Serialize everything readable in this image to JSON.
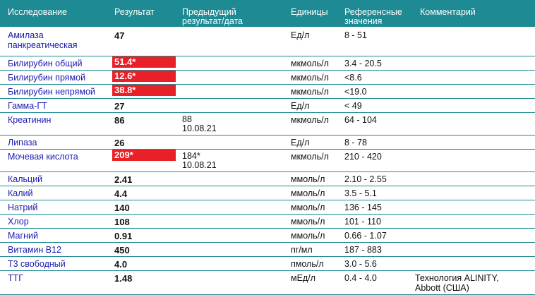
{
  "headers": {
    "test": "Исследование",
    "result": "Результат",
    "previous_line1": "Предыдущий",
    "previous_line2": "результат/дата",
    "units": "Единицы",
    "reference_line1": "Референсные",
    "reference_line2": "значения",
    "comment": "Комментарий"
  },
  "rows": [
    {
      "name_1": "Амилаза",
      "name_2": "панкреатическая",
      "result": "47",
      "flag": false,
      "prev_1": "",
      "prev_2": "",
      "unit": "Ед/л",
      "ref": "8 - 51",
      "comment_1": "",
      "comment_2": ""
    },
    {
      "name_1": "Билирубин общий",
      "name_2": "",
      "result": "51.4*",
      "flag": true,
      "prev_1": "",
      "prev_2": "",
      "unit": "мкмоль/л",
      "ref": "3.4 - 20.5",
      "comment_1": "",
      "comment_2": ""
    },
    {
      "name_1": "Билирубин прямой",
      "name_2": "",
      "result": "12.6*",
      "flag": true,
      "prev_1": "",
      "prev_2": "",
      "unit": "мкмоль/л",
      "ref": "<8.6",
      "comment_1": "",
      "comment_2": ""
    },
    {
      "name_1": "Билирубин непрямой",
      "name_2": "",
      "result": "38.8*",
      "flag": true,
      "prev_1": "",
      "prev_2": "",
      "unit": "мкмоль/л",
      "ref": "<19.0",
      "comment_1": "",
      "comment_2": ""
    },
    {
      "name_1": "Гамма-ГТ",
      "name_2": "",
      "result": "27",
      "flag": false,
      "prev_1": "",
      "prev_2": "",
      "unit": "Ед/л",
      "ref": "< 49",
      "comment_1": "",
      "comment_2": ""
    },
    {
      "name_1": "Креатинин",
      "name_2": "",
      "result": "86",
      "flag": false,
      "prev_1": "88",
      "prev_2": "10.08.21",
      "unit": "мкмоль/л",
      "ref": "64 - 104",
      "comment_1": "",
      "comment_2": ""
    },
    {
      "name_1": "Липаза",
      "name_2": "",
      "result": "26",
      "flag": false,
      "prev_1": "",
      "prev_2": "",
      "unit": "Ед/л",
      "ref": "8 - 78",
      "comment_1": "",
      "comment_2": ""
    },
    {
      "name_1": "Мочевая кислота",
      "name_2": "",
      "result": "209*",
      "flag": true,
      "prev_1": "184*",
      "prev_2": "10.08.21",
      "unit": "мкмоль/л",
      "ref": "210 - 420",
      "comment_1": "",
      "comment_2": ""
    },
    {
      "name_1": "Кальций",
      "name_2": "",
      "result": "2.41",
      "flag": false,
      "prev_1": "",
      "prev_2": "",
      "unit": "ммоль/л",
      "ref": "2.10 - 2.55",
      "comment_1": "",
      "comment_2": ""
    },
    {
      "name_1": "Калий",
      "name_2": "",
      "result": "4.4",
      "flag": false,
      "prev_1": "",
      "prev_2": "",
      "unit": "ммоль/л",
      "ref": "3.5 - 5.1",
      "comment_1": "",
      "comment_2": ""
    },
    {
      "name_1": "Натрий",
      "name_2": "",
      "result": "140",
      "flag": false,
      "prev_1": "",
      "prev_2": "",
      "unit": "ммоль/л",
      "ref": "136 - 145",
      "comment_1": "",
      "comment_2": ""
    },
    {
      "name_1": "Хлор",
      "name_2": "",
      "result": "108",
      "flag": false,
      "prev_1": "",
      "prev_2": "",
      "unit": "ммоль/л",
      "ref": "101 - 110",
      "comment_1": "",
      "comment_2": ""
    },
    {
      "name_1": "Магний",
      "name_2": "",
      "result": "0.91",
      "flag": false,
      "prev_1": "",
      "prev_2": "",
      "unit": "ммоль/л",
      "ref": "0.66 - 1.07",
      "comment_1": "",
      "comment_2": ""
    },
    {
      "name_1": "Витамин В12",
      "name_2": "",
      "result": "450",
      "flag": false,
      "prev_1": "",
      "prev_2": "",
      "unit": "пг/мл",
      "ref": "187 - 883",
      "comment_1": "",
      "comment_2": ""
    },
    {
      "name_1": "Т3 свободный",
      "name_2": "",
      "result": "4.0",
      "flag": false,
      "prev_1": "",
      "prev_2": "",
      "unit": "пмоль/л",
      "ref": "3.0 - 5.6",
      "comment_1": "",
      "comment_2": ""
    },
    {
      "name_1": "ТТГ",
      "name_2": "",
      "result": "1.48",
      "flag": false,
      "prev_1": "",
      "prev_2": "",
      "unit": "мЕд/л",
      "ref": "0.4 - 4.0",
      "comment_1": "Технология ALINITY,",
      "comment_2": "Abbott (США)"
    }
  ],
  "colors": {
    "header_bg": "#1e8a93",
    "flag_bg": "#e82128",
    "test_name": "#1a1ab0"
  }
}
